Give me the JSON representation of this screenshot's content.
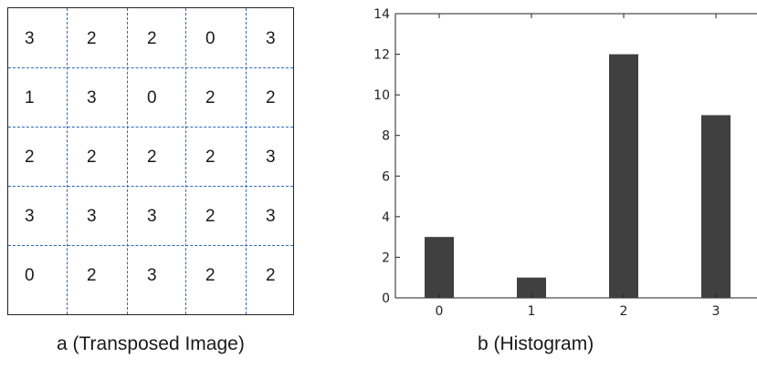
{
  "matrix": {
    "rows": [
      [
        "3",
        "2",
        "2",
        "0",
        "3"
      ],
      [
        "1",
        "3",
        "0",
        "2",
        "2"
      ],
      [
        "2",
        "2",
        "2",
        "2",
        "3"
      ],
      [
        "3",
        "3",
        "3",
        "2",
        "3"
      ],
      [
        "0",
        "2",
        "3",
        "2",
        "2"
      ]
    ]
  },
  "captions": {
    "a": "a (Transposed Image)",
    "b": "b (Histogram)"
  },
  "chart_data": {
    "type": "bar",
    "categories": [
      "0",
      "1",
      "2",
      "3"
    ],
    "values": [
      3,
      1,
      12,
      9
    ],
    "ylim": [
      0,
      14
    ],
    "yticks": [
      "0",
      "2",
      "4",
      "6",
      "8",
      "10",
      "12",
      "14"
    ],
    "bar_color": "#404040",
    "grid": false
  }
}
